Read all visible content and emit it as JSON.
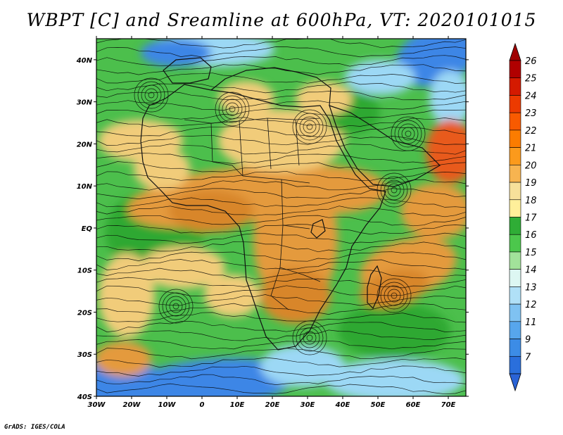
{
  "title": "WBPT [C] and Sreamline at 600hPa, VT: 2020101015",
  "footer": "GrADS: IGES/COLA",
  "map": {
    "lon_range": [
      -30,
      75
    ],
    "lat_range": [
      -40,
      45
    ],
    "lon_ticks": [
      {
        "value": -30,
        "label": "30W"
      },
      {
        "value": -20,
        "label": "20W"
      },
      {
        "value": -10,
        "label": "10W"
      },
      {
        "value": 0,
        "label": "0"
      },
      {
        "value": 10,
        "label": "10E"
      },
      {
        "value": 20,
        "label": "20E"
      },
      {
        "value": 30,
        "label": "30E"
      },
      {
        "value": 40,
        "label": "40E"
      },
      {
        "value": 50,
        "label": "50E"
      },
      {
        "value": 60,
        "label": "60E"
      },
      {
        "value": 70,
        "label": "70E"
      }
    ],
    "lat_ticks": [
      {
        "value": 40,
        "label": "40N"
      },
      {
        "value": 30,
        "label": "30N"
      },
      {
        "value": 20,
        "label": "20N"
      },
      {
        "value": 10,
        "label": "10N"
      },
      {
        "value": 0,
        "label": "EQ"
      },
      {
        "value": -10,
        "label": "10S"
      },
      {
        "value": -20,
        "label": "20S"
      },
      {
        "value": -30,
        "label": "30S"
      },
      {
        "value": -40,
        "label": "40S"
      }
    ]
  },
  "colorbar": {
    "levels": [
      "26",
      "25",
      "24",
      "23",
      "22",
      "21",
      "20",
      "19",
      "18",
      "17",
      "16",
      "15",
      "14",
      "13",
      "12",
      "11",
      "9",
      "7"
    ],
    "colors": [
      "#b00000",
      "#d41a00",
      "#ec3a00",
      "#f85a00",
      "#fb7c00",
      "#fb9a1c",
      "#f7b450",
      "#f7e09a",
      "#ffef9a",
      "#2fad36",
      "#4cc74c",
      "#a2e29a",
      "#ddf7f2",
      "#b0e0f7",
      "#7fc2f2",
      "#57a6ec",
      "#3c8ce6",
      "#2a6fdc"
    ],
    "top_arrow_color": "#a00000",
    "bottom_arrow_color": "#2a63d6"
  },
  "field_colors": {
    "cold": "#3d86e6",
    "cool": "#9cd8f5",
    "mild": "#4cbf4c",
    "green": "#2fa832",
    "warm": "#f1cc7a",
    "hot": "#e49a3c",
    "hotter": "#d8862a",
    "peak": "#e85a1e"
  }
}
